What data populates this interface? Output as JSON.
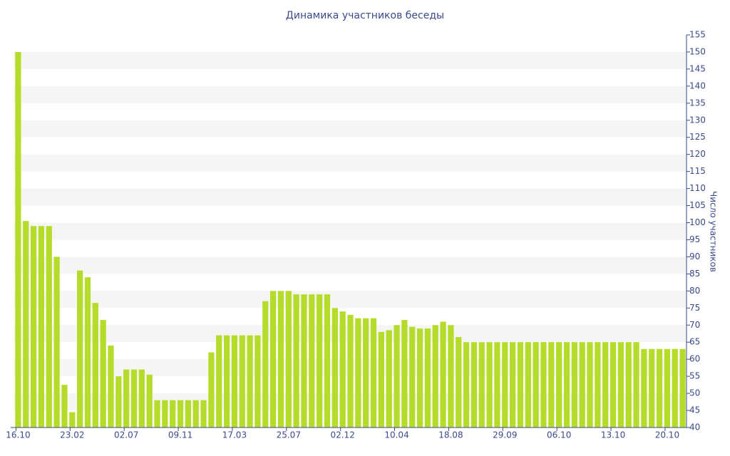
{
  "chart_data": {
    "type": "bar",
    "title": "Динамика участников беседы",
    "y_label": "Число участников",
    "categories": [
      "16.10",
      null,
      null,
      null,
      null,
      null,
      null,
      "23.02",
      null,
      null,
      null,
      null,
      null,
      null,
      "02.07",
      null,
      null,
      null,
      null,
      null,
      null,
      "09.11",
      null,
      null,
      null,
      null,
      null,
      null,
      "17.03",
      null,
      null,
      null,
      null,
      null,
      null,
      "25.07",
      null,
      null,
      null,
      null,
      null,
      null,
      "02.12",
      null,
      null,
      null,
      null,
      null,
      null,
      "10.04",
      null,
      null,
      null,
      null,
      null,
      null,
      "18.08",
      null,
      null,
      null,
      null,
      null,
      null,
      "29.09",
      null,
      null,
      null,
      null,
      null,
      null,
      "06.10",
      null,
      null,
      null,
      null,
      null,
      null,
      "13.10",
      null,
      null,
      null,
      null,
      null,
      null,
      "20.10",
      null,
      null
    ],
    "values": [
      150,
      100.5,
      99,
      99,
      99,
      90,
      52.5,
      44.5,
      86,
      84,
      76.5,
      71.5,
      64,
      55,
      57,
      57,
      57,
      55.5,
      48,
      48,
      48,
      48,
      48,
      48,
      48,
      62,
      67,
      67,
      67,
      67,
      67,
      67,
      77,
      80,
      80,
      80,
      79,
      79,
      79,
      79,
      79,
      75,
      74,
      73,
      72,
      72,
      72,
      68,
      68.5,
      70,
      71.5,
      69.5,
      69,
      69,
      70,
      71,
      70,
      66.5,
      65,
      65,
      65,
      65,
      65,
      65,
      65,
      65,
      65,
      65,
      65,
      65,
      65,
      65,
      65,
      65,
      65,
      65,
      65,
      65,
      65,
      65,
      65,
      63,
      63,
      63,
      63,
      63,
      63
    ],
    "color": "#b5dc2a",
    "ylim": [
      40,
      155
    ],
    "yticks": [
      40,
      45,
      50,
      55,
      60,
      65,
      70,
      75,
      80,
      85,
      90,
      95,
      100,
      105,
      110,
      115,
      120,
      125,
      130,
      135,
      140,
      145,
      150,
      155
    ],
    "y_axis_side": "right",
    "grid": "stripes"
  }
}
